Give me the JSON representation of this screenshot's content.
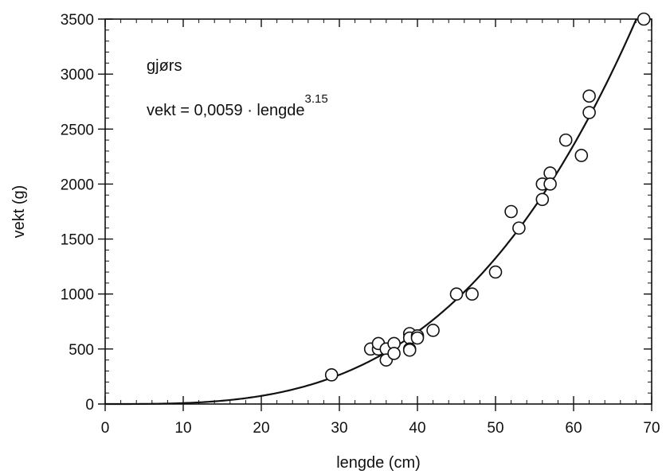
{
  "chart_data": {
    "type": "scatter",
    "title": "",
    "xlabel": "lengde (cm)",
    "ylabel": "vekt (g)",
    "xlim": [
      0,
      70
    ],
    "ylim": [
      0,
      3500
    ],
    "xticks": [
      0,
      10,
      20,
      30,
      40,
      50,
      60,
      70
    ],
    "yticks": [
      0,
      500,
      1000,
      1500,
      2000,
      2500,
      3000,
      3500
    ],
    "grid": false,
    "annotations": {
      "species": "gjørs",
      "formula_main": "vekt = 0,0059 · lengde",
      "formula_exponent": "3.15"
    },
    "fit_curve": {
      "a": 0.0059,
      "b": 3.15
    },
    "points": [
      {
        "x": 29,
        "y": 265
      },
      {
        "x": 34,
        "y": 500
      },
      {
        "x": 35,
        "y": 500
      },
      {
        "x": 35,
        "y": 550
      },
      {
        "x": 36,
        "y": 500
      },
      {
        "x": 36,
        "y": 400
      },
      {
        "x": 37,
        "y": 550
      },
      {
        "x": 37,
        "y": 460
      },
      {
        "x": 39,
        "y": 640
      },
      {
        "x": 39,
        "y": 600
      },
      {
        "x": 39,
        "y": 500
      },
      {
        "x": 39,
        "y": 490
      },
      {
        "x": 40,
        "y": 620
      },
      {
        "x": 40,
        "y": 600
      },
      {
        "x": 42,
        "y": 670
      },
      {
        "x": 45,
        "y": 1000
      },
      {
        "x": 47,
        "y": 1000
      },
      {
        "x": 50,
        "y": 1200
      },
      {
        "x": 52,
        "y": 1750
      },
      {
        "x": 53,
        "y": 1600
      },
      {
        "x": 56,
        "y": 2000
      },
      {
        "x": 56,
        "y": 1860
      },
      {
        "x": 57,
        "y": 2100
      },
      {
        "x": 57,
        "y": 2000
      },
      {
        "x": 59,
        "y": 2400
      },
      {
        "x": 61,
        "y": 2260
      },
      {
        "x": 62,
        "y": 2800
      },
      {
        "x": 62,
        "y": 2650
      },
      {
        "x": 69,
        "y": 3500
      }
    ]
  }
}
